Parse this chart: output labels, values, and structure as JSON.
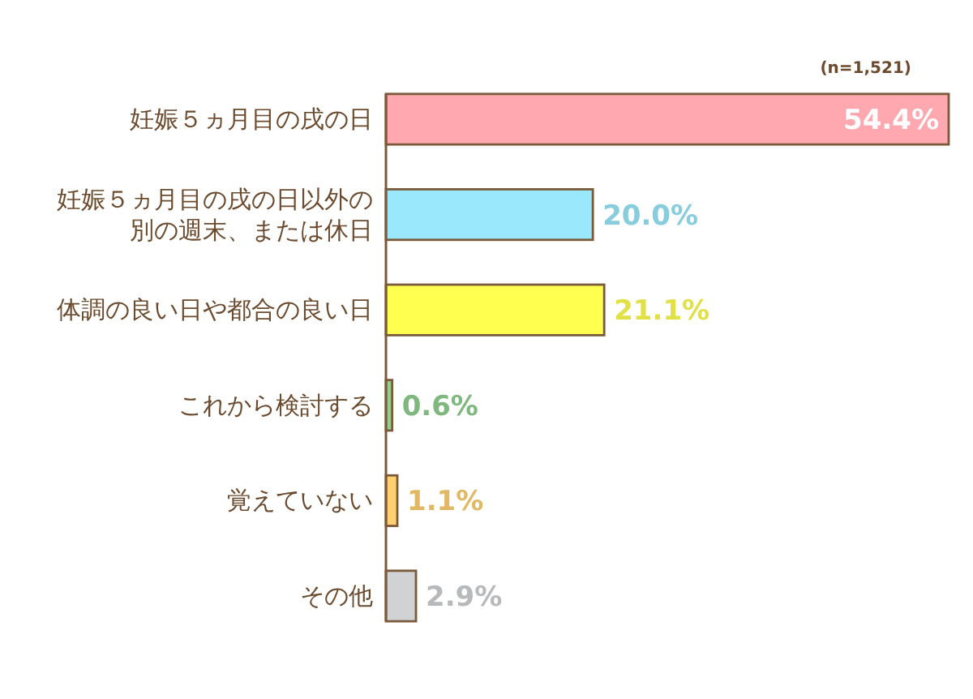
{
  "chart_data": {
    "type": "bar",
    "orientation": "horizontal",
    "categories": [
      "妊娠５ヵ月目の戌の日",
      "妊娠５ヵ月目の戌の日以外の別の週末、または休日",
      "体調の良い日や都合の良い日",
      "これから検討する",
      "覚えていない",
      "その他"
    ],
    "values": [
      54.4,
      20.0,
      21.1,
      0.6,
      1.1,
      2.9
    ],
    "colors": [
      "#ffa8b0",
      "#99e8fb",
      "#ffff50",
      "#90d090",
      "#ffd070",
      "#d0d2d4"
    ],
    "value_labels": [
      "54.4%",
      "20.0%",
      "21.1%",
      "0.6%",
      "1.1%",
      "2.9%"
    ],
    "annotations": [
      "(n=1,521)"
    ]
  }
}
